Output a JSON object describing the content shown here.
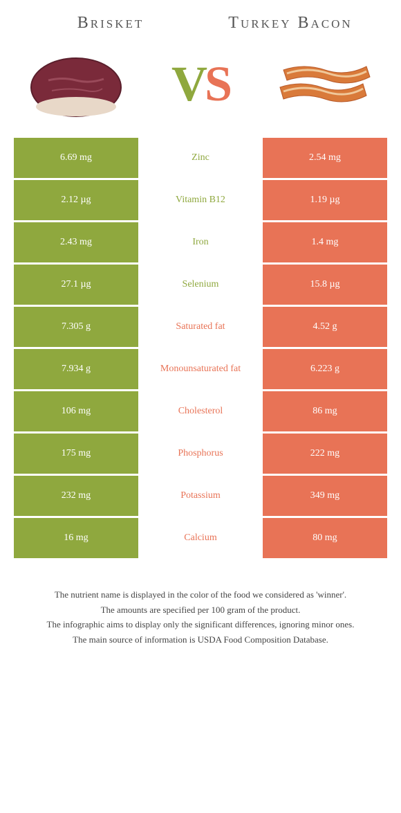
{
  "header": {
    "left_title": "Brisket",
    "right_title": "Turkey Bacon",
    "vs_v": "V",
    "vs_s": "S"
  },
  "colors": {
    "left": "#8fa83e",
    "right": "#e87356",
    "background": "#ffffff",
    "text": "#444444"
  },
  "brisket_svg": {
    "meat_fill": "#7a2a3a",
    "meat_stroke": "#5a1f2c",
    "fat_fill": "#e8d8c8",
    "marble_stroke": "#9a4a5a"
  },
  "bacon_svg": {
    "strip_fill": "#d97a3a",
    "strip_stroke": "#b85a2a",
    "fat_stroke": "#f0c89a"
  },
  "rows": [
    {
      "left": "6.69 mg",
      "mid": "Zinc",
      "right": "2.54 mg",
      "winner": "left"
    },
    {
      "left": "2.12 µg",
      "mid": "Vitamin B12",
      "right": "1.19 µg",
      "winner": "left"
    },
    {
      "left": "2.43 mg",
      "mid": "Iron",
      "right": "1.4 mg",
      "winner": "left"
    },
    {
      "left": "27.1 µg",
      "mid": "Selenium",
      "right": "15.8 µg",
      "winner": "left"
    },
    {
      "left": "7.305 g",
      "mid": "Saturated fat",
      "right": "4.52 g",
      "winner": "right"
    },
    {
      "left": "7.934 g",
      "mid": "Monounsaturated fat",
      "right": "6.223 g",
      "winner": "right"
    },
    {
      "left": "106 mg",
      "mid": "Cholesterol",
      "right": "86 mg",
      "winner": "right"
    },
    {
      "left": "175 mg",
      "mid": "Phosphorus",
      "right": "222 mg",
      "winner": "right"
    },
    {
      "left": "232 mg",
      "mid": "Potassium",
      "right": "349 mg",
      "winner": "right"
    },
    {
      "left": "16 mg",
      "mid": "Calcium",
      "right": "80 mg",
      "winner": "right"
    }
  ],
  "footnotes": [
    "The nutrient name is displayed in the color of the food we considered as 'winner'.",
    "The amounts are specified per 100 gram of the product.",
    "The infographic aims to display only the significant differences, ignoring minor ones.",
    "The main source of information is USDA Food Composition Database."
  ]
}
